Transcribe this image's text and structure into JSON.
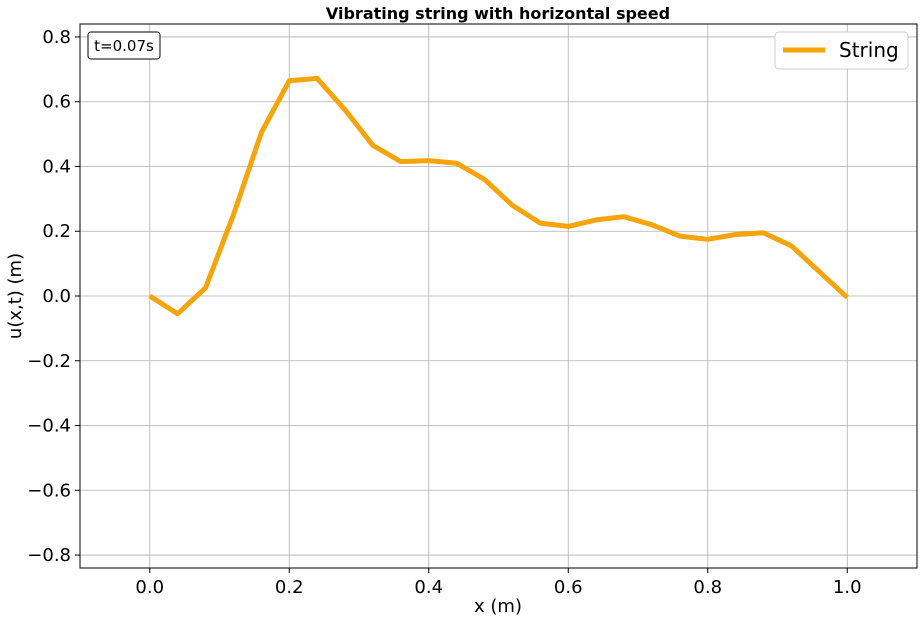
{
  "chart_data": {
    "type": "line",
    "title": "Vibrating string with horizontal speed",
    "xlabel": "x (m)",
    "ylabel": "u(x,t) (m)",
    "xlim": [
      -0.1,
      1.1
    ],
    "ylim": [
      -0.84,
      0.84
    ],
    "xticks": [
      0.0,
      0.2,
      0.4,
      0.6,
      0.8,
      1.0
    ],
    "xtick_labels": [
      "0.0",
      "0.2",
      "0.4",
      "0.6",
      "0.8",
      "1.0"
    ],
    "yticks": [
      -0.8,
      -0.6,
      -0.4,
      -0.2,
      0.0,
      0.2,
      0.4,
      0.6,
      0.8
    ],
    "ytick_labels": [
      "−0.8",
      "−0.6",
      "−0.4",
      "−0.2",
      "0.0",
      "0.2",
      "0.4",
      "0.6",
      "0.8"
    ],
    "grid": true,
    "legend_position": "top-right",
    "annotation": "t=0.07s",
    "series": [
      {
        "name": "String",
        "color": "#f5a40c",
        "x": [
          0.0,
          0.04,
          0.08,
          0.12,
          0.16,
          0.2,
          0.24,
          0.28,
          0.32,
          0.36,
          0.4,
          0.44,
          0.48,
          0.52,
          0.56,
          0.6,
          0.64,
          0.68,
          0.72,
          0.76,
          0.8,
          0.84,
          0.88,
          0.92,
          0.96,
          1.0
        ],
        "y": [
          0.0,
          -0.055,
          0.025,
          0.25,
          0.505,
          0.665,
          0.672,
          0.575,
          0.465,
          0.415,
          0.418,
          0.41,
          0.36,
          0.28,
          0.225,
          0.215,
          0.235,
          0.245,
          0.22,
          0.185,
          0.175,
          0.19,
          0.195,
          0.155,
          0.075,
          -0.005
        ]
      }
    ]
  }
}
